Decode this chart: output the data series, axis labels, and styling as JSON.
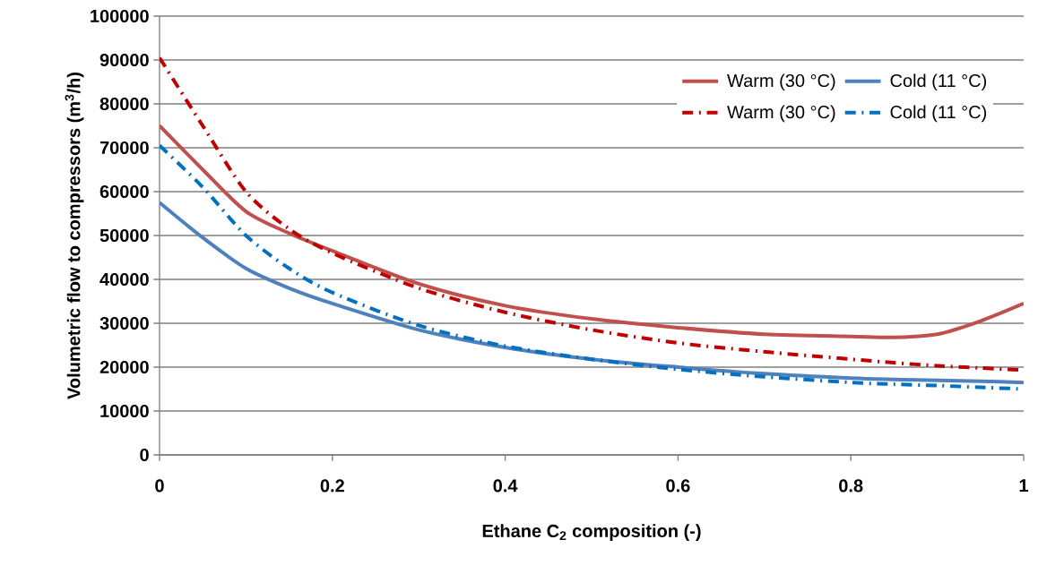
{
  "chart_data": {
    "type": "line",
    "xlabel": "Ethane C$_{2}$ composition (-)",
    "ylabel": "Volumetric flow to compressors  (m$^{3}$/h)",
    "x": [
      0,
      0.05,
      0.1,
      0.15,
      0.2,
      0.3,
      0.4,
      0.5,
      0.6,
      0.7,
      0.8,
      0.85,
      0.9,
      0.95,
      1
    ],
    "series": [
      {
        "name": "Warm (30 °C)",
        "color": "#c0504d",
        "line_style": "solid",
        "values": [
          75000,
          65000,
          55500,
          50500,
          46500,
          39000,
          34000,
          31000,
          29000,
          27500,
          27000,
          26800,
          27500,
          30500,
          34500
        ]
      },
      {
        "name": "Cold (11 °C)",
        "color": "#4f81bd",
        "line_style": "solid",
        "values": [
          57500,
          49500,
          42500,
          38000,
          34500,
          28500,
          24500,
          21800,
          20000,
          18500,
          17500,
          17200,
          17000,
          16800,
          16500
        ]
      },
      {
        "name": "Warm (30 °C)",
        "color": "#c00000",
        "line_style": "dashdot",
        "values": [
          90500,
          75000,
          60000,
          51500,
          46000,
          38000,
          32500,
          28500,
          25500,
          23500,
          21800,
          21000,
          20300,
          19800,
          19300
        ]
      },
      {
        "name": "Cold (11 °C)",
        "color": "#0070c0",
        "line_style": "dashdot",
        "values": [
          70500,
          61000,
          50000,
          42500,
          37000,
          29500,
          24800,
          21800,
          19500,
          17800,
          16500,
          16100,
          15800,
          15400,
          15000
        ]
      }
    ],
    "xlim": [
      0,
      1
    ],
    "ylim": [
      0,
      100000
    ],
    "xticks": [
      0,
      0.2,
      0.4,
      0.6,
      0.8,
      1
    ],
    "yticks": [
      0,
      10000,
      20000,
      30000,
      40000,
      50000,
      60000,
      70000,
      80000,
      90000,
      100000
    ],
    "grid": "y",
    "legend": "top right",
    "marker": "none"
  }
}
